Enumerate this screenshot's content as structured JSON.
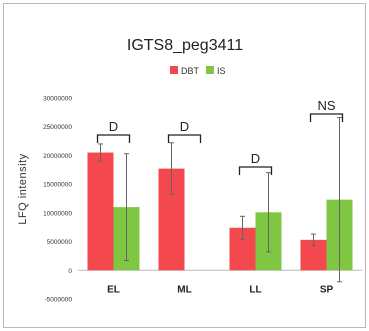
{
  "chart_data": {
    "type": "bar",
    "title": "IGTS8_peg3411",
    "ylabel": "LFQ intensity",
    "xlabel": "",
    "categories": [
      "EL",
      "ML",
      "LL",
      "SP"
    ],
    "series": [
      {
        "name": "DBT",
        "color": "#f2484e",
        "values": [
          20500000,
          17700000,
          7400000,
          5300000
        ],
        "errors": [
          1500000,
          4500000,
          2000000,
          1000000
        ]
      },
      {
        "name": "IS",
        "color": "#7fc743",
        "values": [
          11000000,
          0,
          10100000,
          12300000
        ],
        "errors": [
          9300000,
          0,
          6900000,
          14300000
        ]
      }
    ],
    "ylim": [
      -5000000,
      30000000
    ],
    "yticks": [
      -5000000,
      0,
      5000000,
      10000000,
      15000000,
      20000000,
      25000000,
      30000000
    ],
    "ytick_labels": [
      "-5000000",
      "0",
      "5000000",
      "10000000",
      "15000000",
      "20000000",
      "25000000",
      "30000000"
    ],
    "annotations": [
      {
        "category": "EL",
        "text": "D",
        "bracket": true
      },
      {
        "category": "ML",
        "text": "D",
        "bracket": true
      },
      {
        "category": "LL",
        "text": "D",
        "bracket": true
      },
      {
        "category": "SP",
        "text": "NS",
        "bracket": true
      }
    ],
    "legend_position": "top-center",
    "grid": false
  }
}
